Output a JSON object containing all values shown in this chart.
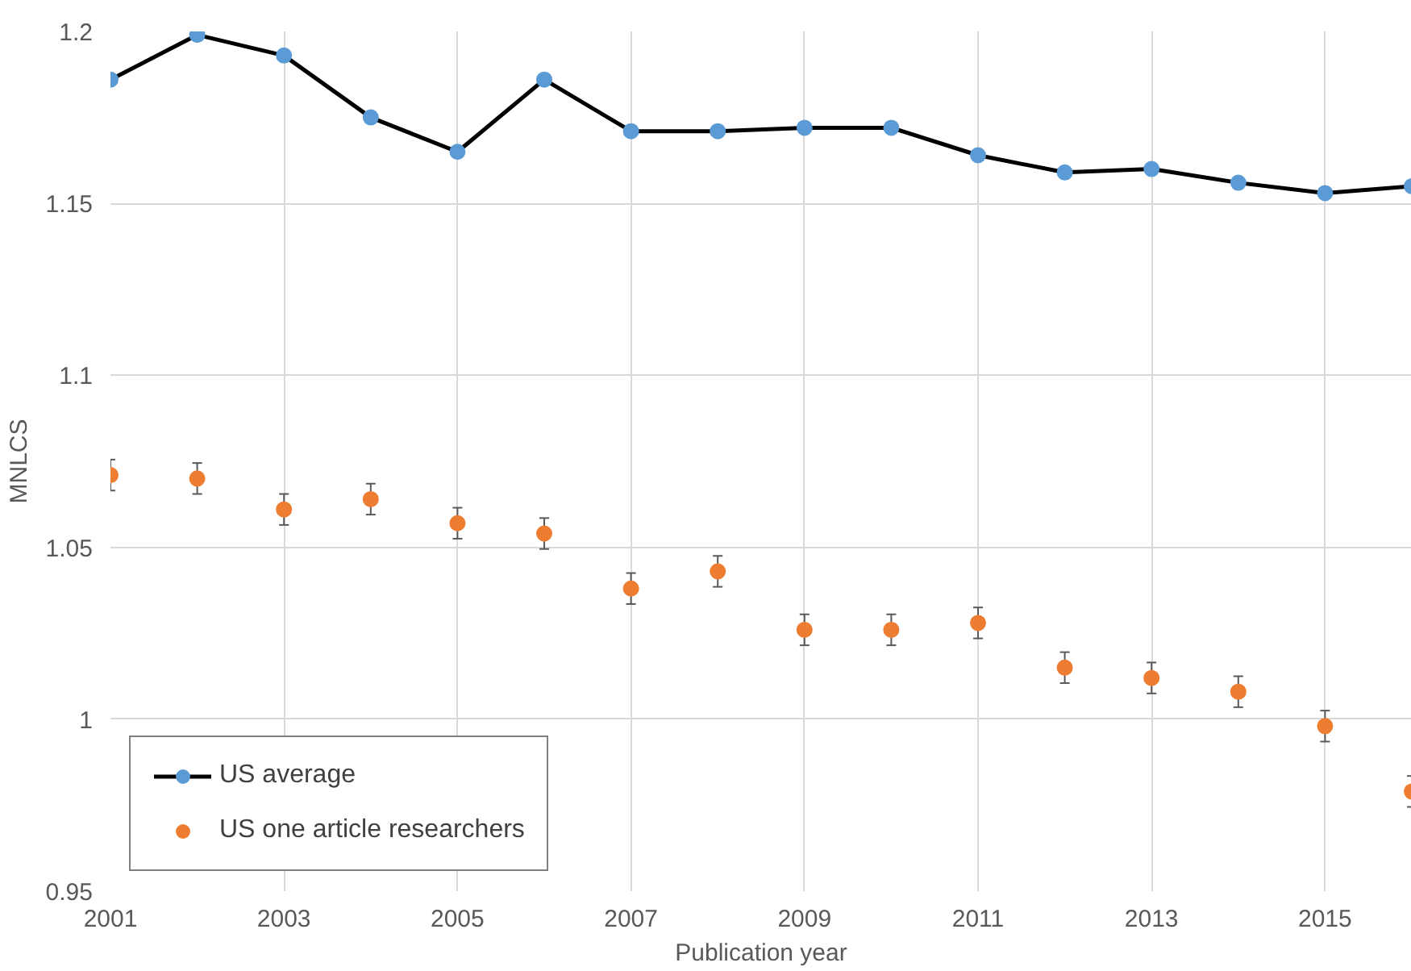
{
  "chart_data": {
    "type": "line",
    "xlabel": "Publication year",
    "ylabel": "MNLCS",
    "x": [
      2001,
      2002,
      2003,
      2004,
      2005,
      2006,
      2007,
      2008,
      2009,
      2010,
      2011,
      2012,
      2013,
      2014,
      2015,
      2016
    ],
    "series": [
      {
        "name": "US average",
        "color": "#5b9bd5",
        "marker": "circle",
        "values": [
          1.186,
          1.199,
          1.193,
          1.175,
          1.165,
          1.186,
          1.171,
          1.171,
          1.172,
          1.172,
          1.164,
          1.159,
          1.16,
          1.156,
          1.153,
          1.155
        ]
      },
      {
        "name": "US one article researchers",
        "type": "scatter",
        "color": "#ed7d31",
        "marker": "circle",
        "values": [
          1.071,
          1.07,
          1.061,
          1.064,
          1.057,
          1.054,
          1.038,
          1.043,
          1.026,
          1.026,
          1.028,
          1.015,
          1.012,
          1.008,
          0.998,
          0.979
        ],
        "errors": [
          0.0045,
          0.0045,
          0.0045,
          0.0045,
          0.0045,
          0.0045,
          0.0045,
          0.0045,
          0.0045,
          0.0045,
          0.0045,
          0.0045,
          0.0045,
          0.0045,
          0.0045,
          0.0045
        ]
      }
    ],
    "xlim": [
      2001,
      2016
    ],
    "xticks": [
      2001,
      2003,
      2005,
      2007,
      2009,
      2011,
      2013,
      2015
    ],
    "ylim": [
      0.95,
      1.2
    ],
    "yticks": [
      0.95,
      1,
      1.05,
      1.1,
      1.15,
      1.2
    ],
    "grid": true,
    "legend": "bottom left"
  }
}
